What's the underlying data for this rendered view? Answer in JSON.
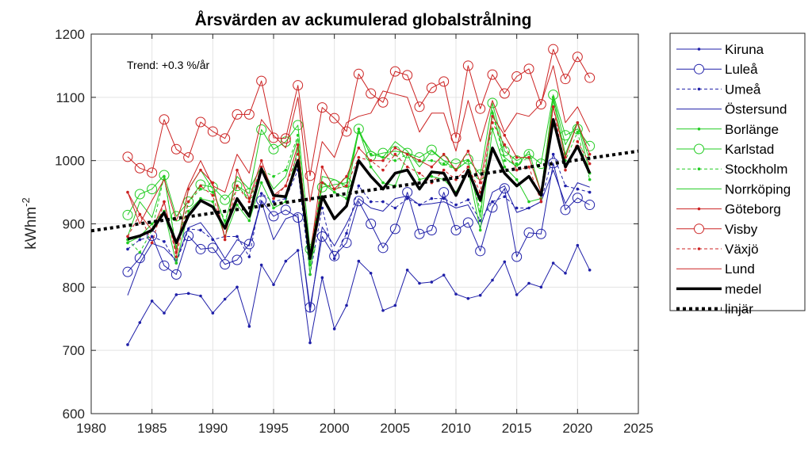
{
  "chart_data": {
    "type": "line",
    "title": "Årsvärden av ackumulerad globalstrålning",
    "xlabel": "",
    "ylabel": "kWhm",
    "ylabel_superscript": "-2",
    "xlim": [
      1980,
      2025
    ],
    "ylim": [
      600,
      1200
    ],
    "xticks": [
      "1980",
      "1985",
      "1990",
      "1995",
      "2000",
      "2005",
      "2010",
      "2015",
      "2020",
      "2025"
    ],
    "yticks": [
      "600",
      "700",
      "800",
      "900",
      "1000",
      "1100",
      "1200"
    ],
    "grid": true,
    "legend_position": "outside-right",
    "annotation": "Trend: +0.3 %/år",
    "x": [
      1983,
      1984,
      1985,
      1986,
      1987,
      1988,
      1989,
      1990,
      1991,
      1992,
      1993,
      1994,
      1995,
      1996,
      1997,
      1998,
      1999,
      2000,
      2001,
      2002,
      2003,
      2004,
      2005,
      2006,
      2007,
      2008,
      2009,
      2010,
      2011,
      2012,
      2013,
      2014,
      2015,
      2016,
      2017,
      2018,
      2019,
      2020,
      2021
    ],
    "series": [
      {
        "name": "Kiruna",
        "color": "#1f1fa8",
        "style": "solid",
        "marker": "dot",
        "values": [
          709,
          744,
          778,
          759,
          788,
          790,
          786,
          759,
          781,
          800,
          738,
          835,
          804,
          841,
          858,
          712,
          815,
          734,
          771,
          841,
          822,
          763,
          771,
          827,
          806,
          808,
          819,
          789,
          782,
          787,
          811,
          840,
          788,
          806,
          800,
          838,
          822,
          866,
          827
        ]
      },
      {
        "name": "Luleå",
        "color": "#1f1fa8",
        "style": "solid",
        "marker": "circle",
        "values": [
          824,
          846,
          881,
          834,
          820,
          881,
          860,
          862,
          836,
          843,
          868,
          937,
          912,
          922,
          910,
          768,
          880,
          849,
          870,
          936,
          900,
          862,
          892,
          950,
          884,
          890,
          950,
          890,
          902,
          857,
          926,
          956,
          848,
          886,
          884,
          996,
          922,
          941,
          930
        ]
      },
      {
        "name": "Umeå",
        "color": "#1f1fa8",
        "style": "dashed",
        "marker": "dot",
        "values": [
          860,
          875,
          880,
          872,
          838,
          892,
          890,
          875,
          880,
          880,
          848,
          948,
          935,
          940,
          985,
          820,
          925,
          845,
          885,
          960,
          935,
          935,
          925,
          940,
          930,
          940,
          940,
          930,
          938,
          905,
          935,
          943,
          925,
          925,
          935,
          1010,
          960,
          955,
          950
        ]
      },
      {
        "name": "Östersund",
        "color": "#1f1fa8",
        "style": "solid",
        "marker": "none",
        "values": [
          787,
          838,
          869,
          862,
          842,
          894,
          902,
          877,
          845,
          875,
          865,
          935,
          875,
          908,
          915,
          760,
          895,
          865,
          900,
          940,
          925,
          920,
          940,
          944,
          930,
          932,
          935,
          925,
          930,
          895,
          950,
          960,
          918,
          925,
          935,
          985,
          932,
          965,
          958
        ]
      },
      {
        "name": "Borlänge",
        "color": "#22cc22",
        "style": "solid",
        "marker": "dot",
        "values": [
          870,
          880,
          900,
          920,
          838,
          920,
          940,
          935,
          880,
          930,
          905,
          965,
          925,
          935,
          1020,
          820,
          965,
          950,
          940,
          1050,
          990,
          965,
          960,
          1010,
          970,
          975,
          970,
          950,
          985,
          890,
          1050,
          990,
          970,
          935,
          940,
          1095,
          1010,
          1060,
          980
        ]
      },
      {
        "name": "Karlstad",
        "color": "#22cc22",
        "style": "solid",
        "marker": "circle",
        "values": [
          914,
          947,
          955,
          977,
          912,
          935,
          962,
          958,
          938,
          960,
          948,
          1049,
          1018,
          1030,
          1056,
          860,
          958,
          962,
          965,
          1050,
          1007,
          1012,
          1015,
          1012,
          1005,
          1017,
          1000,
          995,
          1002,
          978,
          1091,
          1015,
          1000,
          1010,
          995,
          1104,
          1040,
          1050,
          1023
        ]
      },
      {
        "name": "Stockholm",
        "color": "#22cc22",
        "style": "dashed",
        "marker": "dot",
        "values": [
          875,
          855,
          890,
          975,
          862,
          935,
          955,
          950,
          905,
          960,
          940,
          985,
          975,
          985,
          1040,
          835,
          965,
          955,
          960,
          1045,
          1010,
          1005,
          1000,
          1010,
          1000,
          1000,
          995,
          985,
          1000,
          920,
          1075,
          1000,
          995,
          1005,
          950,
          1100,
          1000,
          1045,
          970
        ]
      },
      {
        "name": "Norrköping",
        "color": "#22cc22",
        "style": "solid",
        "marker": "none",
        "values": [
          880,
          935,
          910,
          975,
          860,
          955,
          985,
          955,
          900,
          975,
          955,
          990,
          955,
          975,
          1035,
          835,
          975,
          970,
          960,
          1045,
          1015,
          1005,
          1030,
          1015,
          990,
          1015,
          1000,
          985,
          1000,
          910,
          1080,
          1005,
          990,
          1015,
          950,
          1100,
          1025,
          1060,
          1000
        ]
      },
      {
        "name": "Göteborg",
        "color": "#cc2222",
        "style": "solid",
        "marker": "dot",
        "values": [
          950,
          915,
          890,
          935,
          855,
          955,
          985,
          965,
          875,
          985,
          940,
          1000,
          945,
          960,
          1025,
          850,
          990,
          955,
          975,
          1020,
          1000,
          1000,
          1020,
          1010,
          1000,
          990,
          1010,
          985,
          1015,
          965,
          1070,
          1040,
          1005,
          1005,
          950,
          1085,
          1005,
          1060,
          1010
        ]
      },
      {
        "name": "Visby",
        "color": "#cc2222",
        "style": "circle-only",
        "marker": "circle",
        "values": [
          1006,
          988,
          981,
          1065,
          1018,
          1005,
          1061,
          1046,
          1035,
          1073,
          1073,
          1126,
          1036,
          1035,
          1119,
          976,
          1084,
          1067,
          1046,
          1137,
          1106,
          1092,
          1141,
          1135,
          1085,
          1115,
          1125,
          1036,
          1150,
          1082,
          1136,
          1106,
          1133,
          1145,
          1089,
          1176,
          1129,
          1164,
          1131
        ]
      },
      {
        "name": "Växjö",
        "color": "#cc2222",
        "style": "dashed",
        "marker": "dot",
        "values": [
          880,
          915,
          870,
          935,
          848,
          935,
          960,
          945,
          880,
          960,
          935,
          990,
          940,
          960,
          1010,
          850,
          965,
          955,
          960,
          1005,
          1000,
          985,
          1010,
          990,
          980,
          965,
          985,
          970,
          990,
          950,
          1060,
          1025,
          985,
          990,
          935,
          1085,
          985,
          1030,
          995
        ]
      },
      {
        "name": "Lund",
        "color": "#cc2222",
        "style": "solid",
        "marker": "none",
        "values": [
          950,
          900,
          937,
          970,
          905,
          960,
          1000,
          960,
          950,
          1010,
          980,
          1065,
          1040,
          1020,
          1100,
          935,
          1030,
          1005,
          1060,
          1070,
          1075,
          1110,
          1105,
          1100,
          1045,
          1075,
          1075,
          1015,
          1095,
          1030,
          1095,
          1045,
          1075,
          1070,
          1090,
          1150,
          1060,
          1085,
          1045
        ]
      },
      {
        "name": "medel",
        "color": "#000000",
        "style": "thick",
        "marker": "none",
        "values": [
          876,
          881,
          890,
          918,
          870,
          913,
          937,
          927,
          893,
          940,
          912,
          987,
          945,
          943,
          1000,
          845,
          943,
          908,
          928,
          1000,
          975,
          955,
          980,
          985,
          955,
          982,
          980,
          945,
          985,
          937,
          1020,
          980,
          960,
          975,
          945,
          1065,
          990,
          1023,
          980
        ]
      },
      {
        "name": "linjär",
        "color": "#000000",
        "style": "dotted",
        "marker": "none",
        "x": [
          1980,
          2025
        ],
        "values": [
          889,
          1015
        ]
      }
    ]
  }
}
